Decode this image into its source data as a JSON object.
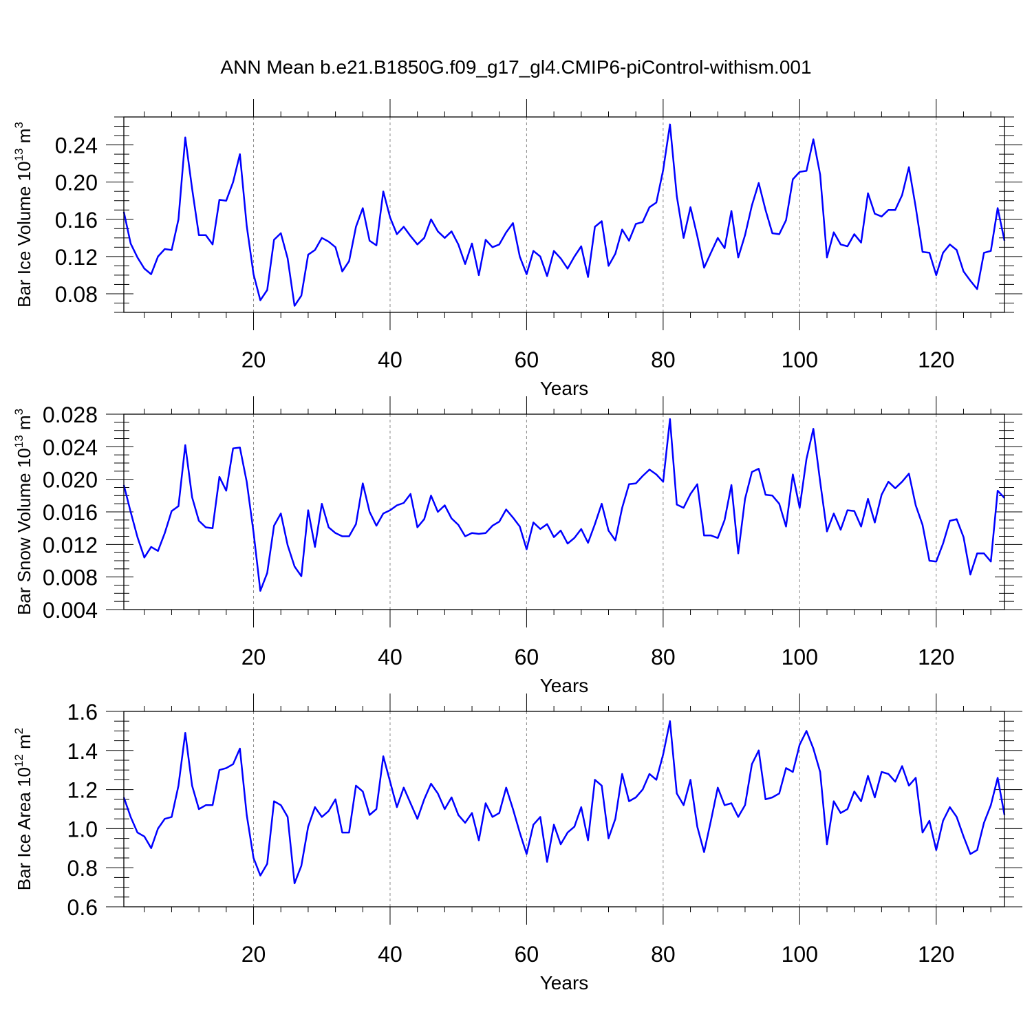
{
  "title": "ANN Mean b.e21.B1850G.f09_g17_gl4.CMIP6-piControl-withism.001",
  "colors": {
    "line": "#0000ff",
    "axis": "#000000",
    "grid": "#888888"
  },
  "chart_data": [
    {
      "type": "line",
      "title": "",
      "xlabel": "Years",
      "ylabel": "Bar Ice Volume 10",
      "ylabel_exp": "13",
      "ylabel_unit": " m",
      "ylabel_unit_exp": "3",
      "xlim": [
        1,
        130
      ],
      "ylim": [
        0.06,
        0.27
      ],
      "xticks": [
        20,
        40,
        60,
        80,
        100,
        120
      ],
      "xtick_labels": [
        "20",
        "40",
        "60",
        "80",
        "100",
        "120"
      ],
      "yticks": [
        0.08,
        0.12,
        0.16,
        0.2,
        0.24
      ],
      "ytick_labels": [
        "0.08",
        "0.12",
        "0.16",
        "0.20",
        "0.24"
      ],
      "series": [
        {
          "name": "Bar Ice Volume",
          "values": [
            0.168,
            0.134,
            0.119,
            0.107,
            0.101,
            0.12,
            0.128,
            0.127,
            0.16,
            0.248,
            0.193,
            0.143,
            0.143,
            0.133,
            0.181,
            0.18,
            0.2,
            0.23,
            0.153,
            0.101,
            0.073,
            0.084,
            0.138,
            0.145,
            0.118,
            0.067,
            0.078,
            0.122,
            0.127,
            0.14,
            0.136,
            0.13,
            0.104,
            0.115,
            0.152,
            0.172,
            0.137,
            0.132,
            0.19,
            0.162,
            0.144,
            0.152,
            0.142,
            0.133,
            0.14,
            0.16,
            0.147,
            0.14,
            0.147,
            0.133,
            0.112,
            0.134,
            0.1,
            0.138,
            0.13,
            0.133,
            0.146,
            0.156,
            0.12,
            0.101,
            0.126,
            0.12,
            0.099,
            0.126,
            0.118,
            0.107,
            0.12,
            0.131,
            0.098,
            0.152,
            0.158,
            0.11,
            0.123,
            0.149,
            0.137,
            0.155,
            0.157,
            0.173,
            0.178,
            0.213,
            0.262,
            0.185,
            0.14,
            0.173,
            0.142,
            0.108,
            0.124,
            0.14,
            0.129,
            0.169,
            0.119,
            0.143,
            0.175,
            0.199,
            0.17,
            0.145,
            0.144,
            0.159,
            0.203,
            0.211,
            0.212,
            0.246,
            0.208,
            0.119,
            0.146,
            0.133,
            0.131,
            0.144,
            0.135,
            0.188,
            0.166,
            0.163,
            0.17,
            0.17,
            0.186,
            0.216,
            0.173,
            0.125,
            0.124,
            0.1,
            0.124,
            0.133,
            0.127,
            0.104,
            0.094,
            0.085,
            0.124,
            0.126,
            0.172,
            0.137
          ]
        }
      ]
    },
    {
      "type": "line",
      "title": "",
      "xlabel": "Years",
      "ylabel": "Bar Snow Volume 10",
      "ylabel_exp": "13",
      "ylabel_unit": " m",
      "ylabel_unit_exp": "3",
      "xlim": [
        1,
        130
      ],
      "ylim": [
        0.004,
        0.028
      ],
      "xticks": [
        20,
        40,
        60,
        80,
        100,
        120
      ],
      "xtick_labels": [
        "20",
        "40",
        "60",
        "80",
        "100",
        "120"
      ],
      "yticks": [
        0.004,
        0.008,
        0.012,
        0.016,
        0.02,
        0.024,
        0.028
      ],
      "ytick_labels": [
        "0.004",
        "0.008",
        "0.012",
        "0.016",
        "0.020",
        "0.024",
        "0.028"
      ],
      "series": [
        {
          "name": "Bar Snow Volume",
          "values": [
            0.0193,
            0.016,
            0.0129,
            0.0104,
            0.0117,
            0.0112,
            0.0134,
            0.0161,
            0.0167,
            0.0242,
            0.0178,
            0.0149,
            0.0141,
            0.014,
            0.0203,
            0.0186,
            0.0238,
            0.0239,
            0.0197,
            0.0135,
            0.0063,
            0.0085,
            0.0143,
            0.0158,
            0.0119,
            0.0093,
            0.0081,
            0.0162,
            0.0117,
            0.017,
            0.0141,
            0.0134,
            0.013,
            0.013,
            0.0145,
            0.0195,
            0.016,
            0.0143,
            0.0158,
            0.0162,
            0.0168,
            0.0171,
            0.0182,
            0.0141,
            0.0151,
            0.018,
            0.016,
            0.0168,
            0.0152,
            0.0144,
            0.013,
            0.0134,
            0.0133,
            0.0134,
            0.0143,
            0.0148,
            0.0163,
            0.0153,
            0.0142,
            0.0114,
            0.0147,
            0.0139,
            0.0145,
            0.0129,
            0.0137,
            0.0121,
            0.0128,
            0.0139,
            0.0122,
            0.0145,
            0.017,
            0.0137,
            0.0125,
            0.0165,
            0.0194,
            0.0195,
            0.0204,
            0.0212,
            0.0206,
            0.0197,
            0.0274,
            0.0169,
            0.0165,
            0.0182,
            0.0194,
            0.0131,
            0.0131,
            0.0128,
            0.015,
            0.0193,
            0.0109,
            0.0176,
            0.0209,
            0.0213,
            0.0181,
            0.018,
            0.017,
            0.0142,
            0.0206,
            0.0165,
            0.0225,
            0.0262,
            0.0197,
            0.0136,
            0.0158,
            0.0138,
            0.0162,
            0.0161,
            0.0142,
            0.0176,
            0.0147,
            0.0181,
            0.0197,
            0.0189,
            0.0197,
            0.0207,
            0.0168,
            0.0144,
            0.01,
            0.0099,
            0.0121,
            0.0149,
            0.0151,
            0.0129,
            0.0083,
            0.0109,
            0.0109,
            0.0099,
            0.0186,
            0.0177
          ]
        }
      ]
    },
    {
      "type": "line",
      "title": "",
      "xlabel": "Years",
      "ylabel": "Bar Ice Area 10",
      "ylabel_exp": "12",
      "ylabel_unit": " m",
      "ylabel_unit_exp": "2",
      "xlim": [
        1,
        130
      ],
      "ylim": [
        0.6,
        1.6
      ],
      "xticks": [
        20,
        40,
        60,
        80,
        100,
        120
      ],
      "xtick_labels": [
        "20",
        "40",
        "60",
        "80",
        "100",
        "120"
      ],
      "yticks": [
        0.6,
        0.8,
        1.0,
        1.2,
        1.4,
        1.6
      ],
      "ytick_labels": [
        "0.6",
        "0.8",
        "1.0",
        "1.2",
        "1.4",
        "1.6"
      ],
      "series": [
        {
          "name": "Bar Ice Area",
          "values": [
            1.16,
            1.06,
            0.98,
            0.96,
            0.9,
            1.0,
            1.05,
            1.06,
            1.22,
            1.49,
            1.22,
            1.1,
            1.12,
            1.12,
            1.3,
            1.31,
            1.33,
            1.41,
            1.07,
            0.85,
            0.76,
            0.82,
            1.14,
            1.12,
            1.06,
            0.72,
            0.81,
            1.01,
            1.11,
            1.06,
            1.09,
            1.15,
            0.98,
            0.98,
            1.22,
            1.19,
            1.07,
            1.1,
            1.37,
            1.24,
            1.11,
            1.21,
            1.13,
            1.05,
            1.15,
            1.23,
            1.18,
            1.1,
            1.16,
            1.07,
            1.03,
            1.08,
            0.94,
            1.13,
            1.06,
            1.08,
            1.21,
            1.1,
            0.98,
            0.87,
            1.02,
            1.06,
            0.83,
            1.02,
            0.92,
            0.98,
            1.01,
            1.11,
            0.94,
            1.25,
            1.22,
            0.95,
            1.05,
            1.28,
            1.14,
            1.16,
            1.2,
            1.28,
            1.25,
            1.38,
            1.55,
            1.18,
            1.12,
            1.25,
            1.01,
            0.88,
            1.04,
            1.21,
            1.12,
            1.13,
            1.06,
            1.12,
            1.33,
            1.4,
            1.15,
            1.16,
            1.18,
            1.31,
            1.29,
            1.43,
            1.5,
            1.41,
            1.29,
            0.92,
            1.14,
            1.08,
            1.1,
            1.19,
            1.14,
            1.27,
            1.16,
            1.29,
            1.28,
            1.24,
            1.32,
            1.22,
            1.26,
            0.98,
            1.04,
            0.89,
            1.04,
            1.11,
            1.06,
            0.96,
            0.87,
            0.89,
            1.03,
            1.12,
            1.26,
            1.07
          ]
        }
      ]
    }
  ]
}
